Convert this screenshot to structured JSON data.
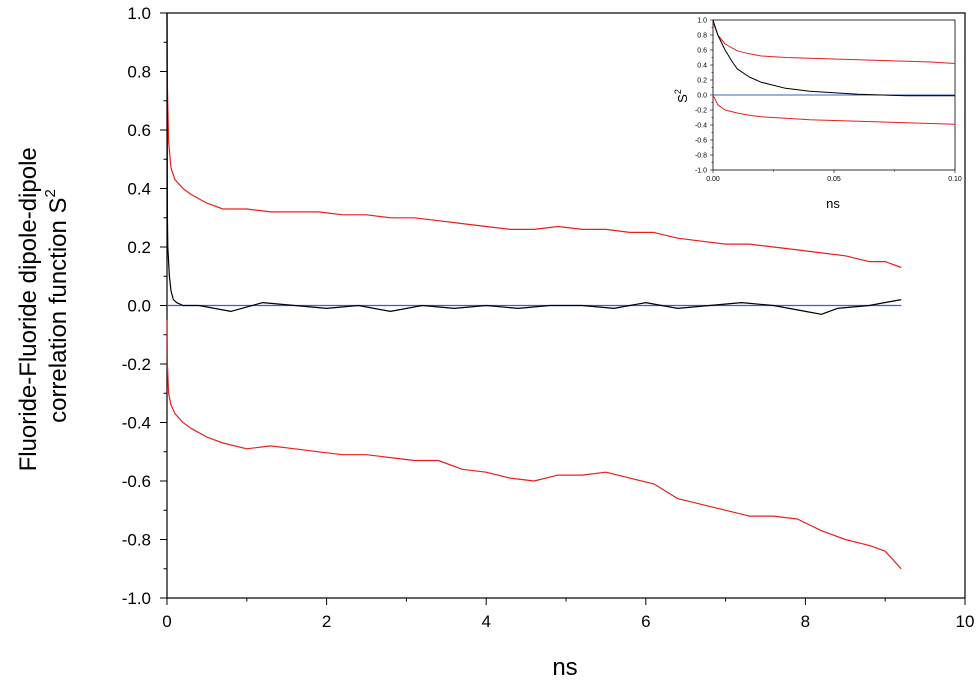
{
  "chart_data": [
    {
      "type": "line",
      "title": "",
      "xlabel": "ns",
      "ylabel_line1": "Fluoride-Fluoride dipole-dipole",
      "ylabel_line2": "correlation function S",
      "ylabel_sup": "2",
      "xlim": [
        0,
        10
      ],
      "ylim": [
        -1.0,
        1.0
      ],
      "xticks": [
        0,
        2,
        4,
        6,
        8,
        10
      ],
      "xtick_labels": [
        "0",
        "2",
        "4",
        "6",
        "8",
        "10"
      ],
      "yticks": [
        1.0,
        0.8,
        0.6,
        0.4,
        0.2,
        0.0,
        -0.2,
        -0.4,
        -0.6,
        -0.8,
        -1.0
      ],
      "ytick_labels": [
        "1.0",
        "0.8",
        "0.6",
        "0.4",
        "0.2",
        "0.0",
        "-0.2",
        "-0.4",
        "-0.6",
        "-0.8",
        "-1.0"
      ],
      "grid": false,
      "legend": "none",
      "series": [
        {
          "color": "#e8201e",
          "x": [
            0,
            0.005,
            0.02,
            0.05,
            0.1,
            0.2,
            0.3,
            0.5,
            0.7,
            1.0,
            1.3,
            1.6,
            1.9,
            2.2,
            2.5,
            2.8,
            3.1,
            3.4,
            3.7,
            4.0,
            4.3,
            4.6,
            4.9,
            5.2,
            5.5,
            5.8,
            6.1,
            6.4,
            6.7,
            7.0,
            7.3,
            7.6,
            7.9,
            8.2,
            8.5,
            8.8,
            9.0,
            9.2
          ],
          "y": [
            1.0,
            0.75,
            0.56,
            0.47,
            0.43,
            0.4,
            0.38,
            0.35,
            0.33,
            0.33,
            0.32,
            0.32,
            0.32,
            0.31,
            0.31,
            0.3,
            0.3,
            0.29,
            0.28,
            0.27,
            0.26,
            0.26,
            0.27,
            0.26,
            0.26,
            0.25,
            0.25,
            0.23,
            0.22,
            0.21,
            0.21,
            0.2,
            0.19,
            0.18,
            0.17,
            0.15,
            0.15,
            0.13
          ]
        },
        {
          "color": "#e8201e",
          "x": [
            0,
            0.005,
            0.02,
            0.05,
            0.1,
            0.2,
            0.3,
            0.5,
            0.7,
            1.0,
            1.3,
            1.6,
            1.9,
            2.2,
            2.5,
            2.8,
            3.1,
            3.4,
            3.7,
            4.0,
            4.3,
            4.6,
            4.9,
            5.2,
            5.5,
            5.8,
            6.1,
            6.4,
            6.7,
            7.0,
            7.3,
            7.6,
            7.9,
            8.2,
            8.5,
            8.8,
            9.0,
            9.2
          ],
          "y": [
            -0.05,
            -0.2,
            -0.3,
            -0.34,
            -0.37,
            -0.4,
            -0.42,
            -0.45,
            -0.47,
            -0.49,
            -0.48,
            -0.49,
            -0.5,
            -0.51,
            -0.51,
            -0.52,
            -0.53,
            -0.53,
            -0.56,
            -0.57,
            -0.59,
            -0.6,
            -0.58,
            -0.58,
            -0.57,
            -0.59,
            -0.61,
            -0.66,
            -0.68,
            -0.7,
            -0.72,
            -0.72,
            -0.73,
            -0.77,
            -0.8,
            -0.82,
            -0.84,
            -0.9
          ]
        },
        {
          "color": "#000000",
          "x": [
            0,
            0.005,
            0.01,
            0.03,
            0.05,
            0.08,
            0.12,
            0.2,
            0.4,
            0.8,
            1.2,
            1.6,
            2.0,
            2.4,
            2.8,
            3.2,
            3.6,
            4.0,
            4.4,
            4.8,
            5.2,
            5.6,
            6.0,
            6.4,
            6.8,
            7.2,
            7.6,
            8.0,
            8.2,
            8.4,
            8.8,
            9.2
          ],
          "y": [
            1.0,
            0.3,
            0.2,
            0.1,
            0.05,
            0.02,
            0.01,
            0.0,
            0.0,
            -0.02,
            0.01,
            0.0,
            -0.01,
            0.0,
            -0.02,
            0.0,
            -0.01,
            0.0,
            -0.01,
            0.0,
            0.0,
            -0.01,
            0.01,
            -0.01,
            0.0,
            0.01,
            0.0,
            -0.02,
            -0.03,
            -0.01,
            0.0,
            0.02
          ]
        },
        {
          "color": "#3a5fcd",
          "x": [
            0,
            9.2
          ],
          "y": [
            0.0,
            0.0
          ]
        }
      ]
    },
    {
      "type": "line",
      "title": "",
      "xlabel": "ns",
      "ylabel": "S",
      "ylabel_sup": "2",
      "xlim": [
        0.0,
        0.1
      ],
      "ylim": [
        -1.0,
        1.0
      ],
      "xticks": [
        0.0,
        0.05,
        0.1
      ],
      "xtick_labels": [
        "0.00",
        "0.05",
        "0.10"
      ],
      "yticks": [
        1.0,
        0.8,
        0.6,
        0.4,
        0.2,
        0.0,
        -0.2,
        -0.4,
        -0.6,
        -0.8,
        -1.0
      ],
      "ytick_labels": [
        "1.0",
        "0.8",
        "0.6",
        "0.4",
        "0.2",
        "0.0",
        "-0.2",
        "-0.4",
        "-0.6",
        "-0.8",
        "-1.0"
      ],
      "grid": false,
      "legend": "none",
      "series": [
        {
          "color": "#e8201e",
          "x": [
            0,
            0.002,
            0.005,
            0.01,
            0.015,
            0.02,
            0.03,
            0.04,
            0.05,
            0.06,
            0.07,
            0.08,
            0.09,
            0.1
          ],
          "y": [
            0.97,
            0.8,
            0.68,
            0.59,
            0.55,
            0.52,
            0.5,
            0.49,
            0.48,
            0.47,
            0.46,
            0.45,
            0.44,
            0.42
          ]
        },
        {
          "color": "#e8201e",
          "x": [
            0,
            0.002,
            0.005,
            0.01,
            0.015,
            0.02,
            0.03,
            0.04,
            0.05,
            0.06,
            0.07,
            0.08,
            0.09,
            0.1
          ],
          "y": [
            0.0,
            -0.13,
            -0.2,
            -0.24,
            -0.27,
            -0.29,
            -0.31,
            -0.33,
            -0.34,
            -0.35,
            -0.36,
            -0.37,
            -0.38,
            -0.39
          ]
        },
        {
          "color": "#000000",
          "x": [
            0,
            0.002,
            0.005,
            0.008,
            0.01,
            0.015,
            0.02,
            0.03,
            0.04,
            0.05,
            0.06,
            0.07,
            0.08,
            0.09,
            0.1
          ],
          "y": [
            1.0,
            0.8,
            0.6,
            0.44,
            0.35,
            0.24,
            0.17,
            0.09,
            0.05,
            0.03,
            0.01,
            0.0,
            -0.01,
            -0.01,
            -0.01
          ]
        },
        {
          "color": "#3a5fcd",
          "x": [
            0,
            0.1
          ],
          "y": [
            0.0,
            0.0
          ]
        }
      ]
    }
  ]
}
